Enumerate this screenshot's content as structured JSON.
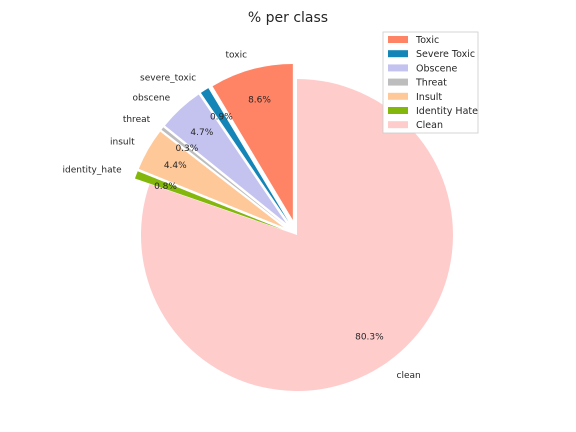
{
  "chart_data": {
    "type": "pie",
    "title": "% per class",
    "start_angle_deg": 90,
    "direction": "counterclockwise",
    "legend_position": "top-right",
    "slices": [
      {
        "label": "toxic",
        "legend": "Toxic",
        "value": 8.6,
        "pct_label": "8.6%",
        "color": "#ff8466",
        "explode": true
      },
      {
        "label": "severe_toxic",
        "legend": "Severe Toxic",
        "value": 0.9,
        "pct_label": "0.9%",
        "color": "#1385b6",
        "explode": true
      },
      {
        "label": "obscene",
        "legend": "Obscene",
        "value": 4.7,
        "pct_label": "4.7%",
        "color": "#c4c3f0",
        "explode": true
      },
      {
        "label": "threat",
        "legend": "Threat",
        "value": 0.3,
        "pct_label": "0.3%",
        "color": "#bdbdbd",
        "explode": true
      },
      {
        "label": "insult",
        "legend": "Insult",
        "value": 4.4,
        "pct_label": "4.4%",
        "color": "#ffc899",
        "explode": true
      },
      {
        "label": "identity_hate",
        "legend": "Identity Hate",
        "value": 0.8,
        "pct_label": "0.8%",
        "color": "#84b70b",
        "explode": true
      },
      {
        "label": "clean",
        "legend": "Clean",
        "value": 80.3,
        "pct_label": "80.3%",
        "color": "#ffcccc",
        "explode": false
      }
    ]
  }
}
